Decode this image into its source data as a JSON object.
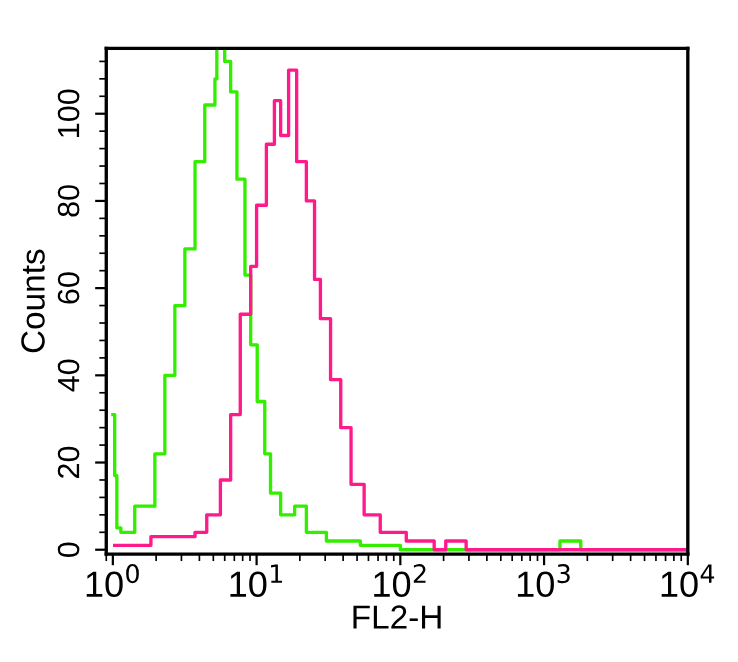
{
  "chart_data": {
    "type": "step",
    "xlabel": "FL2-H",
    "ylabel": "Counts",
    "log": "x",
    "xlim": [
      0.9,
      10000
    ],
    "ylim": [
      -1,
      115
    ],
    "xticks": [
      {
        "value": 1,
        "label": "10$^{0}$"
      },
      {
        "value": 10,
        "label": "10$^{1}$"
      },
      {
        "value": 100,
        "label": "10$^{2}$"
      },
      {
        "value": 1000,
        "label": "10$^{3}$"
      },
      {
        "value": 10000,
        "label": "10$^{4}$"
      }
    ],
    "yticks": [
      0,
      20,
      40,
      60,
      80,
      100
    ],
    "grid": false,
    "legend": false,
    "series": [
      {
        "color": "#33ee00",
        "x": [
          1,
          1.03,
          1.066,
          1.137,
          1.42,
          1.96,
          2.3,
          2.7,
          3.17,
          3.73,
          4.36,
          5.13,
          5.29,
          6.0,
          6.6,
          7.3,
          8.3,
          9.1,
          10.1,
          11.4,
          12.5,
          14.7,
          18.4,
          22.2,
          30.6,
          52.7,
          100,
          1100,
          1290,
          1800,
          10000
        ],
        "values": [
          31,
          17,
          5,
          4,
          10,
          22,
          40,
          56,
          69,
          89,
          102,
          108,
          115,
          112,
          105,
          85,
          63,
          47,
          34,
          22,
          13,
          8,
          10,
          4,
          2,
          1,
          0,
          0,
          2,
          0,
          0
        ]
      },
      {
        "color": "#ff1a8c",
        "x": [
          1.03,
          1.84,
          2.37,
          3.73,
          4.5,
          5.6,
          6.6,
          7.7,
          9.1,
          10.0,
          11.7,
          13.3,
          14.7,
          16.7,
          19.0,
          22.2,
          25.3,
          27.8,
          32.7,
          38.5,
          45.4,
          56.0,
          72.5,
          110,
          172,
          207,
          287,
          10000
        ],
        "values": [
          1,
          3,
          3,
          4,
          8,
          16,
          31,
          54,
          65,
          79,
          93,
          103,
          95,
          110,
          89,
          80,
          62,
          53,
          39,
          28,
          15,
          8,
          4,
          2,
          0,
          2,
          0,
          0
        ]
      }
    ]
  }
}
